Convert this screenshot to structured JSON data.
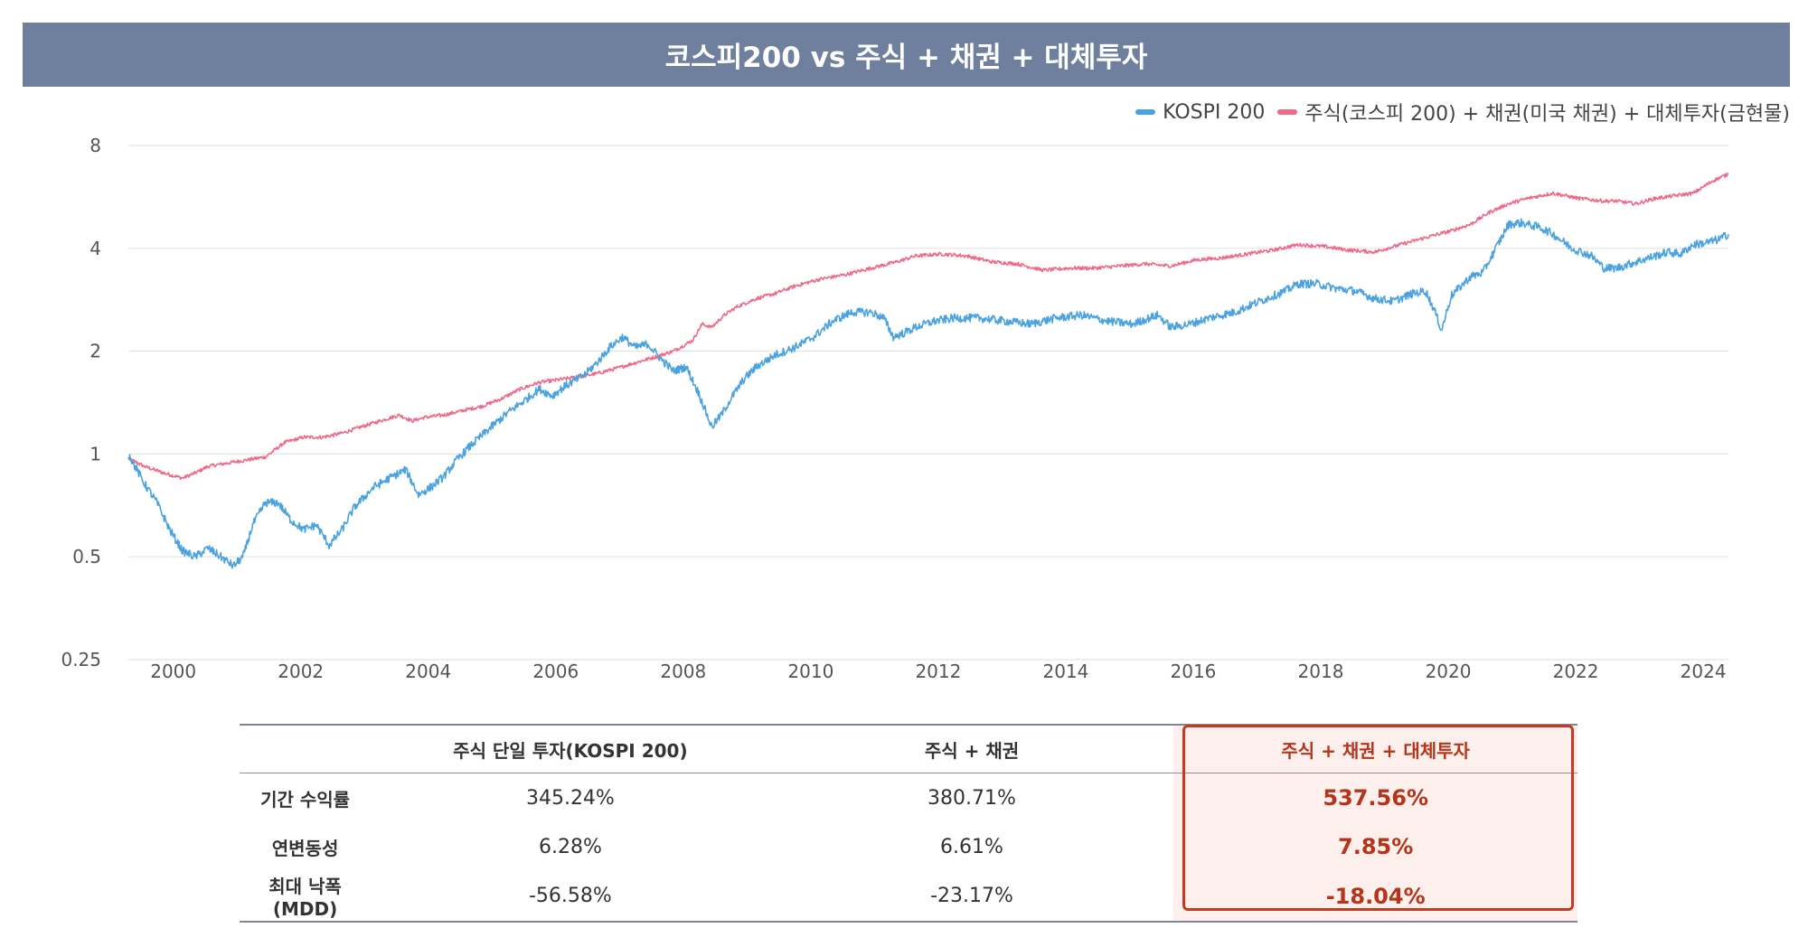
{
  "header": {
    "title": "코스피200  vs 주식 + 채권 + 대체투자"
  },
  "colors": {
    "kospi": "#4aa2e0",
    "mix": "#ee6a8a",
    "header_bg": "#6f7f9e",
    "highlight": "#c23b22"
  },
  "legend": [
    {
      "label": "KOSPI 200",
      "color": "#4aa2e0"
    },
    {
      "label": "주식(코스피 200) + 채권(미국 채권) + 대체투자(금현물)",
      "color": "#ee6a8a"
    }
  ],
  "chart_data": {
    "type": "line",
    "y_scale": "log2",
    "ylim": [
      0.25,
      8
    ],
    "yticks": [
      "0.25",
      "0.5",
      "1",
      "2",
      "4",
      "8"
    ],
    "ytick_values": [
      0.25,
      0.5,
      1,
      2,
      4,
      8
    ],
    "xlim": [
      1999.65,
      2024.75
    ],
    "xticks": [
      "2000",
      "2002",
      "2004",
      "2006",
      "2008",
      "2010",
      "2012",
      "2014",
      "2016",
      "2018",
      "2020",
      "2022",
      "2024"
    ],
    "xtick_values": [
      2000,
      2002,
      2004,
      2006,
      2008,
      2010,
      2012,
      2014,
      2016,
      2018,
      2020,
      2022,
      2024
    ],
    "grid": true,
    "series": [
      {
        "name": "KOSPI 200",
        "x": [
          1999.65,
          1999.9,
          2000.1,
          2000.3,
          2000.5,
          2000.7,
          2000.9,
          2001.1,
          2001.3,
          2001.45,
          2001.6,
          2001.8,
          2002.0,
          2002.2,
          2002.4,
          2002.6,
          2002.8,
          2003.0,
          2003.2,
          2003.5,
          2003.8,
          2004.0,
          2004.2,
          2004.4,
          2004.6,
          2004.8,
          2005.0,
          2005.3,
          2005.6,
          2005.9,
          2006.1,
          2006.3,
          2006.5,
          2006.8,
          2007.0,
          2007.2,
          2007.4,
          2007.6,
          2007.8,
          2008.0,
          2008.2,
          2008.4,
          2008.6,
          2008.8,
          2008.95,
          2009.1,
          2009.3,
          2009.5,
          2009.8,
          2010.1,
          2010.4,
          2010.7,
          2011.0,
          2011.3,
          2011.5,
          2011.65,
          2011.8,
          2012.0,
          2012.3,
          2012.6,
          2013.0,
          2013.4,
          2013.8,
          2014.2,
          2014.6,
          2015.0,
          2015.4,
          2015.8,
          2016.0,
          2016.3,
          2016.6,
          2017.0,
          2017.4,
          2017.8,
          2018.0,
          2018.3,
          2018.6,
          2018.9,
          2019.2,
          2019.5,
          2019.8,
          2020.0,
          2020.15,
          2020.25,
          2020.4,
          2020.7,
          2020.9,
          2021.1,
          2021.3,
          2021.5,
          2021.8,
          2022.0,
          2022.3,
          2022.6,
          2022.8,
          2023.0,
          2023.2,
          2023.4,
          2023.6,
          2023.8,
          2024.0,
          2024.2,
          2024.4,
          2024.6,
          2024.75
        ],
        "values": [
          1.0,
          0.82,
          0.72,
          0.6,
          0.52,
          0.5,
          0.53,
          0.5,
          0.47,
          0.5,
          0.62,
          0.72,
          0.72,
          0.64,
          0.6,
          0.62,
          0.54,
          0.6,
          0.7,
          0.8,
          0.86,
          0.9,
          0.76,
          0.8,
          0.86,
          0.96,
          1.05,
          1.18,
          1.32,
          1.45,
          1.55,
          1.48,
          1.58,
          1.7,
          1.85,
          2.05,
          2.2,
          2.05,
          2.1,
          1.9,
          1.75,
          1.8,
          1.5,
          1.2,
          1.3,
          1.45,
          1.65,
          1.8,
          1.95,
          2.05,
          2.2,
          2.45,
          2.6,
          2.6,
          2.5,
          2.2,
          2.25,
          2.35,
          2.45,
          2.5,
          2.5,
          2.45,
          2.4,
          2.5,
          2.55,
          2.45,
          2.4,
          2.55,
          2.35,
          2.4,
          2.5,
          2.6,
          2.8,
          3.0,
          3.15,
          3.15,
          3.05,
          3.0,
          2.85,
          2.8,
          2.95,
          3.0,
          2.6,
          2.3,
          2.9,
          3.3,
          3.4,
          4.0,
          4.7,
          4.75,
          4.6,
          4.4,
          4.0,
          3.8,
          3.5,
          3.5,
          3.6,
          3.7,
          3.8,
          3.9,
          3.85,
          4.1,
          4.15,
          4.25,
          4.4
        ]
      },
      {
        "name": "주식(코스피 200) + 채권(미국 채권) + 대체투자(금현물)",
        "x": [
          1999.65,
          1999.9,
          2000.2,
          2000.5,
          2000.7,
          2000.9,
          2001.2,
          2001.5,
          2001.8,
          2002.1,
          2002.4,
          2002.7,
          2003.0,
          2003.3,
          2003.6,
          2003.9,
          2004.1,
          2004.3,
          2004.6,
          2004.9,
          2005.2,
          2005.5,
          2005.8,
          2006.1,
          2006.4,
          2006.7,
          2007.0,
          2007.3,
          2007.6,
          2007.9,
          2008.2,
          2008.5,
          2008.65,
          2008.8,
          2009.0,
          2009.2,
          2009.5,
          2009.8,
          2010.1,
          2010.5,
          2010.9,
          2011.3,
          2011.7,
          2012.0,
          2012.4,
          2012.8,
          2013.2,
          2013.6,
          2014.0,
          2014.4,
          2014.8,
          2015.2,
          2015.6,
          2016.0,
          2016.4,
          2016.8,
          2017.2,
          2017.6,
          2018.0,
          2018.4,
          2018.8,
          2019.2,
          2019.6,
          2020.0,
          2020.2,
          2020.4,
          2020.7,
          2021.0,
          2021.3,
          2021.6,
          2022.0,
          2022.4,
          2022.8,
          2023.0,
          2023.3,
          2023.6,
          2023.9,
          2024.2,
          2024.5,
          2024.75
        ],
        "values": [
          0.97,
          0.92,
          0.88,
          0.85,
          0.88,
          0.92,
          0.94,
          0.96,
          0.98,
          1.08,
          1.12,
          1.12,
          1.15,
          1.2,
          1.25,
          1.3,
          1.25,
          1.28,
          1.3,
          1.34,
          1.38,
          1.45,
          1.55,
          1.62,
          1.65,
          1.68,
          1.72,
          1.78,
          1.85,
          1.92,
          2.0,
          2.15,
          2.4,
          2.35,
          2.55,
          2.7,
          2.85,
          2.95,
          3.1,
          3.25,
          3.35,
          3.5,
          3.65,
          3.8,
          3.85,
          3.8,
          3.65,
          3.6,
          3.45,
          3.5,
          3.5,
          3.55,
          3.6,
          3.55,
          3.7,
          3.75,
          3.85,
          3.95,
          4.1,
          4.05,
          3.95,
          3.9,
          4.1,
          4.3,
          4.4,
          4.5,
          4.7,
          5.1,
          5.4,
          5.6,
          5.8,
          5.6,
          5.5,
          5.5,
          5.4,
          5.6,
          5.7,
          5.8,
          6.3,
          6.6
        ]
      }
    ]
  },
  "table": {
    "columns": [
      "",
      "주식 단일 투자(KOSPI 200)",
      "주식 + 채권",
      "주식 + 채권 + 대체투자"
    ],
    "rows": [
      {
        "label": "기간 수익률",
        "values": [
          "345.24%",
          "380.71%",
          "537.56%"
        ]
      },
      {
        "label": "연변동성",
        "values": [
          "6.28%",
          "6.61%",
          "7.85%"
        ]
      },
      {
        "label": "최대 낙폭(MDD)",
        "values": [
          "-56.58%",
          "-23.17%",
          "-18.04%"
        ]
      }
    ]
  }
}
